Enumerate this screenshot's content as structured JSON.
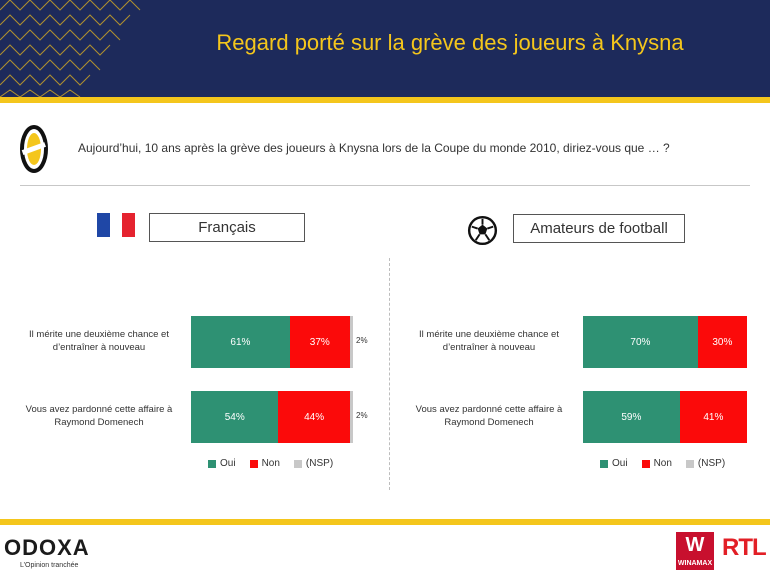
{
  "header": {
    "title": "Regard porté sur la grève des joueurs à Knysna"
  },
  "question": {
    "text": "Aujourd’hui, 10 ans après la grève des joueurs à Knysna lors de la Coupe du monde 2010, diriez-vous que … ?"
  },
  "groups": [
    {
      "label": "Français",
      "icon": "french-flag-icon"
    },
    {
      "label": "Amateurs de football",
      "icon": "football-icon"
    }
  ],
  "colors": {
    "oui": "#2e9173",
    "non": "#fb0a0a",
    "nsp": "#c8c8c8",
    "navy": "#1d2a5b",
    "gold": "#f4c61c"
  },
  "chart_data": [
    {
      "type": "bar",
      "orientation": "horizontal-stacked",
      "title": "Français",
      "categories": [
        "Il mérite une deuxième chance et d’entraîner à nouveau",
        "Vous avez pardonné cette affaire à Raymond Domenech"
      ],
      "series": [
        {
          "name": "Oui",
          "values": [
            61,
            54
          ]
        },
        {
          "name": "Non",
          "values": [
            37,
            44
          ]
        },
        {
          "name": "(NSP)",
          "values": [
            2,
            2
          ]
        }
      ],
      "legend": "bottom"
    },
    {
      "type": "bar",
      "orientation": "horizontal-stacked",
      "title": "Amateurs de football",
      "categories": [
        "Il mérite une deuxième chance et d’entraîner à nouveau",
        "Vous avez pardonné cette affaire à Raymond Domenech"
      ],
      "series": [
        {
          "name": "Oui",
          "values": [
            70,
            59
          ]
        },
        {
          "name": "Non",
          "values": [
            30,
            41
          ]
        },
        {
          "name": "(NSP)",
          "values": [
            0,
            0
          ]
        }
      ],
      "legend": "bottom"
    }
  ],
  "footer": {
    "brand": "ODOXA",
    "tagline": "L’Opinion tranchée",
    "partner1": "WINAMAX",
    "partner2": "RTL"
  }
}
